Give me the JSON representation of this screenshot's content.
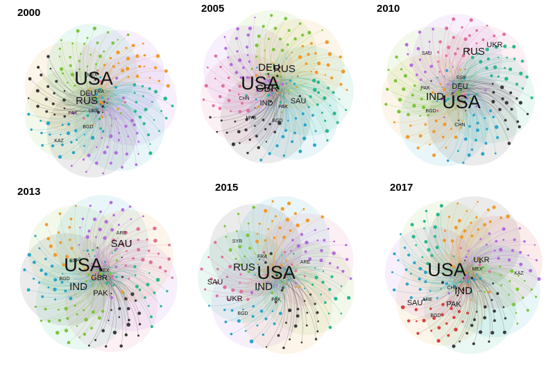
{
  "colors": {
    "gray": "#3a3a3a",
    "green": "#7cc43a",
    "cyan": "#2aa6c8",
    "purple": "#b46be0",
    "orange": "#f09a2a",
    "pink": "#e0709a",
    "teal": "#2ab88e",
    "red": "#d6403a",
    "label": "#111111"
  },
  "panels": [
    {
      "year": "2000",
      "labels": [
        {
          "text": "USA",
          "size": "xl"
        },
        {
          "text": "RUS",
          "size": "l"
        },
        {
          "text": "DEU",
          "size": "m"
        },
        {
          "text": "FRA",
          "size": "s"
        },
        {
          "text": "UKR",
          "size": "s"
        },
        {
          "text": "MEX",
          "size": "s"
        },
        {
          "text": "KAZ",
          "size": "s"
        },
        {
          "text": "BGD",
          "size": "s"
        },
        {
          "text": "PAK",
          "size": "s"
        }
      ]
    },
    {
      "year": "2005",
      "labels": [
        {
          "text": "USA",
          "size": "xl"
        },
        {
          "text": "DEU",
          "size": "l"
        },
        {
          "text": "RUS",
          "size": "l"
        },
        {
          "text": "GBR",
          "size": "l"
        },
        {
          "text": "IND",
          "size": "m"
        },
        {
          "text": "SAU",
          "size": "m"
        },
        {
          "text": "CHN",
          "size": "s"
        },
        {
          "text": "PAK",
          "size": "s"
        },
        {
          "text": "MYS",
          "size": "s"
        },
        {
          "text": "BGD",
          "size": "s"
        }
      ]
    },
    {
      "year": "2010",
      "labels": [
        {
          "text": "USA",
          "size": "xl"
        },
        {
          "text": "RUS",
          "size": "l"
        },
        {
          "text": "IND",
          "size": "l"
        },
        {
          "text": "DEU",
          "size": "m"
        },
        {
          "text": "UKR",
          "size": "m"
        },
        {
          "text": "SAU",
          "size": "s"
        },
        {
          "text": "CHN",
          "size": "s"
        },
        {
          "text": "PAK",
          "size": "s"
        },
        {
          "text": "BGD",
          "size": "s"
        },
        {
          "text": "ESP",
          "size": "s"
        }
      ]
    },
    {
      "year": "2013",
      "labels": [
        {
          "text": "USA",
          "size": "xl"
        },
        {
          "text": "IND",
          "size": "l"
        },
        {
          "text": "SAU",
          "size": "l"
        },
        {
          "text": "GBR",
          "size": "m"
        },
        {
          "text": "PAK",
          "size": "m"
        },
        {
          "text": "ARE",
          "size": "s"
        },
        {
          "text": "MEX",
          "size": "s"
        },
        {
          "text": "BGD",
          "size": "s"
        },
        {
          "text": "ESP",
          "size": "s"
        }
      ]
    },
    {
      "year": "2015",
      "labels": [
        {
          "text": "USA",
          "size": "xl"
        },
        {
          "text": "RUS",
          "size": "l"
        },
        {
          "text": "IND",
          "size": "l"
        },
        {
          "text": "SAU",
          "size": "m"
        },
        {
          "text": "UKR",
          "size": "m"
        },
        {
          "text": "FRA",
          "size": "s"
        },
        {
          "text": "ARE",
          "size": "s"
        },
        {
          "text": "BGD",
          "size": "s"
        },
        {
          "text": "SYR",
          "size": "s"
        },
        {
          "text": "PAK",
          "size": "s"
        }
      ]
    },
    {
      "year": "2017",
      "labels": [
        {
          "text": "USA",
          "size": "xl"
        },
        {
          "text": "IND",
          "size": "l"
        },
        {
          "text": "UKR",
          "size": "m"
        },
        {
          "text": "SAU",
          "size": "m"
        },
        {
          "text": "PAK",
          "size": "m"
        },
        {
          "text": "CHN",
          "size": "s"
        },
        {
          "text": "MEX",
          "size": "s"
        },
        {
          "text": "ARE",
          "size": "s"
        },
        {
          "text": "KAZ",
          "size": "s"
        },
        {
          "text": "BGD",
          "size": "s"
        }
      ]
    }
  ]
}
